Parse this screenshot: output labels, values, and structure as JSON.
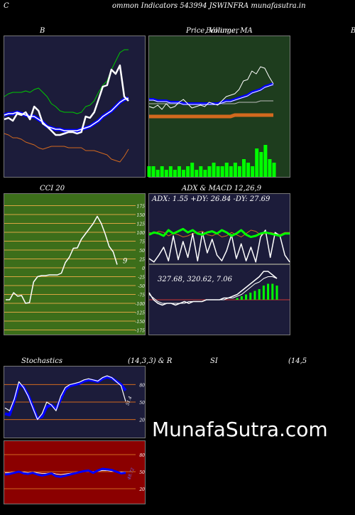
{
  "header": {
    "left_letter": "C",
    "title": "ommon  Indicators 543994  JSWINFRA munafasutra.in"
  },
  "watermark": "MunafaSutra.com",
  "titles": {
    "bollinger": "B",
    "price_volume_ma": "Price,  Volume,  MA",
    "price_overlap": "Bollinger",
    "right_edge_letter": "B",
    "cci": "CCI 20",
    "adx_macd": "ADX  & MACD 12,26,9",
    "stochastics": "Stochastics",
    "stoch_params": "(14,3,3) & R",
    "rsi": "SI",
    "rsi_params": "(14,5"
  },
  "adx_text": "ADX: 1.55  +DY: 26.84  -DY: 27.69",
  "macd_text": "327.68,  320.62,  7.06",
  "cci_label_value": "9",
  "stoch_value_label": "51.4",
  "rsi_value_label": "48.72",
  "colors": {
    "navy_panel": "#1c1c3a",
    "green_panel": "#1e3d1e",
    "olive_panel": "#3c6e1a",
    "red_panel": "#8b0000",
    "orange": "#d2691e",
    "blue": "#0000ff",
    "green_line": "#00c800",
    "bright_green": "#00ff00"
  },
  "chart_data": [
    {
      "name": "bollinger",
      "type": "line",
      "series": [
        {
          "key": "price",
          "values": [
            41,
            42,
            40,
            45,
            44,
            46,
            41,
            50,
            47,
            38,
            36,
            33,
            30,
            30,
            31,
            32,
            32,
            31,
            32,
            43,
            42,
            46,
            55,
            64,
            65,
            76,
            73,
            79,
            57,
            54
          ]
        },
        {
          "key": "upper",
          "values": [
            57,
            59,
            60,
            60,
            60,
            61,
            60,
            62,
            63,
            60,
            57,
            52,
            50,
            47,
            46,
            46,
            46,
            45,
            46,
            50,
            51,
            54,
            60,
            65,
            68,
            76,
            82,
            88,
            90,
            90
          ]
        },
        {
          "key": "middle",
          "values": [
            44,
            45,
            45,
            46,
            45,
            44,
            43,
            43,
            41,
            39,
            36,
            35,
            34,
            34,
            33,
            33,
            33,
            33,
            34,
            35,
            36,
            38,
            40,
            43,
            45,
            47,
            50,
            53,
            55,
            56
          ]
        },
        {
          "key": "lower",
          "values": [
            31,
            30,
            28,
            28,
            27,
            25,
            24,
            23,
            21,
            20,
            21,
            22,
            22,
            22,
            22,
            21,
            21,
            21,
            21,
            19,
            19,
            19,
            18,
            17,
            16,
            13,
            12,
            11,
            15,
            20
          ]
        }
      ]
    },
    {
      "name": "price_volume_ma",
      "type": "line",
      "series": [
        {
          "key": "price",
          "values": [
            50,
            49,
            51,
            48,
            52,
            49,
            50,
            53,
            55,
            52,
            49,
            50,
            51,
            50,
            53,
            52,
            51,
            54,
            57,
            58,
            59,
            62,
            68,
            69,
            75,
            73,
            78,
            77,
            71,
            66
          ]
        },
        {
          "key": "ma_blue",
          "values": [
            55,
            55,
            54,
            54,
            54,
            53,
            53,
            53,
            52,
            52,
            52,
            52,
            52,
            52,
            52,
            52,
            52,
            53,
            54,
            54,
            55,
            56,
            57,
            58,
            60,
            61,
            62,
            64,
            65,
            66
          ]
        },
        {
          "key": "ma_white",
          "values": [
            52,
            52,
            52,
            52,
            52,
            52,
            52,
            52,
            52,
            52,
            52,
            52,
            52,
            52,
            52,
            52,
            52,
            52,
            52,
            52,
            52,
            53,
            53,
            53,
            53,
            53,
            54,
            54,
            54,
            54
          ]
        },
        {
          "key": "ma_orange",
          "values": [
            43,
            43,
            43,
            43,
            43,
            43,
            43,
            43,
            43,
            43,
            43,
            43,
            43,
            43,
            43,
            43,
            43,
            43,
            43,
            43,
            44,
            44,
            44,
            44,
            44,
            44,
            44,
            44,
            44,
            44
          ]
        },
        {
          "key": "volume",
          "values": [
            3,
            3,
            2,
            3,
            2,
            3,
            2,
            3,
            2,
            3,
            4,
            2,
            3,
            2,
            3,
            4,
            3,
            3,
            4,
            3,
            4,
            3,
            5,
            4,
            3,
            8,
            7,
            9,
            5,
            4
          ]
        }
      ]
    },
    {
      "name": "cci",
      "type": "line",
      "ylim": [
        -175,
        175
      ],
      "ticks": [
        175,
        150,
        125,
        100,
        75,
        50,
        25,
        0,
        -25,
        -50,
        -75,
        -100,
        -125,
        -150,
        -175
      ],
      "values": [
        -90,
        -90,
        -70,
        -80,
        -78,
        -100,
        -98,
        -40,
        -25,
        -22,
        -22,
        -20,
        -20,
        -20,
        -15,
        15,
        30,
        55,
        56,
        80,
        95,
        110,
        125,
        145,
        125,
        95,
        60,
        45,
        9
      ]
    },
    {
      "name": "adx",
      "type": "line",
      "series": [
        {
          "key": "plus_dy",
          "values": [
            26,
            28,
            27,
            25,
            30,
            27,
            29,
            31,
            28,
            30,
            27,
            26,
            28,
            29,
            27,
            30,
            28,
            25,
            27,
            30,
            26,
            24,
            25,
            27,
            28,
            27,
            26,
            25,
            27,
            27
          ]
        },
        {
          "key": "minus_dy",
          "values": [
            28,
            27,
            29,
            28,
            25,
            27,
            26,
            24,
            25,
            27,
            28,
            29,
            26,
            25,
            27,
            24,
            25,
            28,
            26,
            24,
            27,
            30,
            29,
            26,
            27,
            28,
            27,
            26,
            28,
            28
          ]
        },
        {
          "key": "adx_line",
          "values": [
            5,
            2,
            8,
            15,
            3,
            25,
            4,
            20,
            6,
            27,
            3,
            28,
            10,
            22,
            8,
            3,
            12,
            26,
            5,
            18,
            3,
            15,
            2,
            24,
            30,
            6,
            28,
            25,
            8,
            2
          ]
        }
      ]
    },
    {
      "name": "macd",
      "type": "bar",
      "series": [
        {
          "key": "macd",
          "values": [
            4,
            0,
            -2,
            -3,
            -2,
            -2,
            -3,
            -2,
            -1,
            -2,
            -1,
            -1,
            -1,
            0,
            0,
            0,
            0,
            1,
            1,
            2,
            3,
            5,
            7,
            9,
            11,
            13,
            16,
            16,
            14,
            12
          ]
        },
        {
          "key": "signal",
          "values": [
            3,
            1,
            -1,
            -2,
            -2,
            -2,
            -2,
            -2,
            -2,
            -1,
            -1,
            -1,
            -1,
            0,
            0,
            0,
            0,
            0,
            1,
            1,
            2,
            3,
            5,
            7,
            9,
            10,
            12,
            13,
            13,
            12
          ]
        },
        {
          "key": "histogram",
          "values": [
            0,
            0,
            0,
            0,
            0,
            0,
            0,
            0,
            0,
            0,
            0,
            0,
            0,
            0,
            0,
            0,
            0,
            0,
            0,
            0,
            1,
            2,
            3,
            4,
            5,
            6,
            8,
            9,
            9,
            8
          ]
        }
      ]
    },
    {
      "name": "stochastics",
      "type": "line",
      "ylim": [
        0,
        100
      ],
      "ticks": [
        80,
        50,
        20
      ],
      "series": [
        {
          "key": "k",
          "values": [
            40,
            35,
            55,
            85,
            75,
            60,
            40,
            20,
            30,
            50,
            45,
            35,
            60,
            75,
            80,
            82,
            84,
            88,
            90,
            88,
            86,
            92,
            95,
            92,
            85,
            78,
            51
          ]
        },
        {
          "key": "d",
          "values": [
            30,
            28,
            52,
            80,
            76,
            62,
            42,
            22,
            25,
            42,
            45,
            38,
            55,
            72,
            78,
            80,
            82,
            86,
            88,
            87,
            85,
            90,
            93,
            91,
            86,
            80,
            70
          ]
        }
      ]
    },
    {
      "name": "rsi",
      "type": "line",
      "ylim": [
        0,
        100
      ],
      "ticks": [
        80,
        50,
        20
      ],
      "series": [
        {
          "key": "rsi_blue",
          "values": [
            45,
            46,
            48,
            50,
            47,
            46,
            48,
            45,
            43,
            45,
            47,
            42,
            41,
            43,
            45,
            47,
            49,
            51,
            52,
            48,
            52,
            55,
            54,
            53,
            50,
            47,
            48
          ]
        },
        {
          "key": "rsi_white",
          "values": [
            48,
            48,
            49,
            50,
            49,
            48,
            49,
            48,
            47,
            47,
            48,
            46,
            45,
            46,
            47,
            48,
            49,
            50,
            51,
            50,
            51,
            52,
            52,
            51,
            50,
            49,
            49
          ]
        }
      ]
    }
  ]
}
